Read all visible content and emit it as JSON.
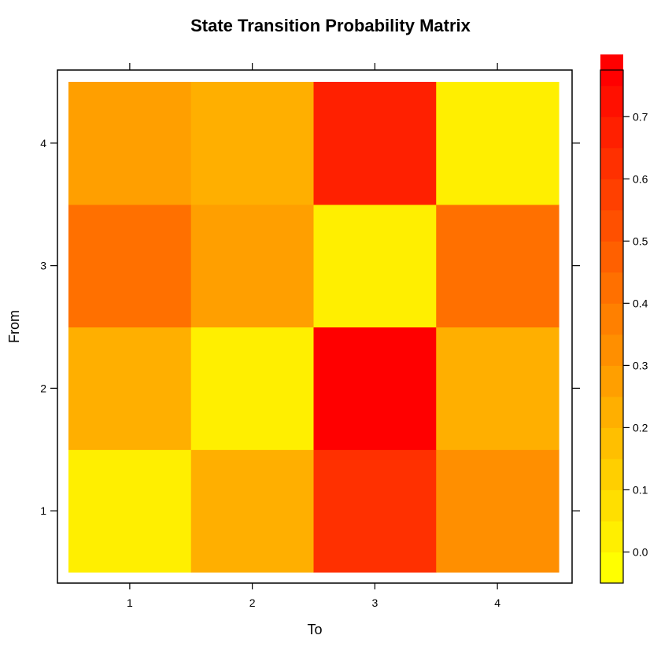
{
  "chart_data": {
    "type": "heatmap",
    "title": "State Transition Probability Matrix",
    "xlabel": "To",
    "ylabel": "From",
    "x_categories": [
      "1",
      "2",
      "3",
      "4"
    ],
    "y_categories": [
      "1",
      "2",
      "3",
      "4"
    ],
    "rows": [
      {
        "from": "1",
        "values": [
          0.0,
          0.25,
          0.6,
          0.35
        ]
      },
      {
        "from": "2",
        "values": [
          0.25,
          0.0,
          0.75,
          0.25
        ]
      },
      {
        "from": "3",
        "values": [
          0.4,
          0.3,
          0.0,
          0.4
        ]
      },
      {
        "from": "4",
        "values": [
          0.3,
          0.25,
          0.65,
          0.0
        ]
      }
    ],
    "colorbar": {
      "ticks": [
        "0.0",
        "0.1",
        "0.2",
        "0.3",
        "0.4",
        "0.5",
        "0.6",
        "0.7"
      ],
      "tick_values": [
        0.0,
        0.1,
        0.2,
        0.3,
        0.4,
        0.5,
        0.6,
        0.7
      ],
      "range": [
        -0.05,
        0.775
      ],
      "band_width": 0.05,
      "color_low": "#FFFF00",
      "color_high": "#FF0000"
    }
  }
}
